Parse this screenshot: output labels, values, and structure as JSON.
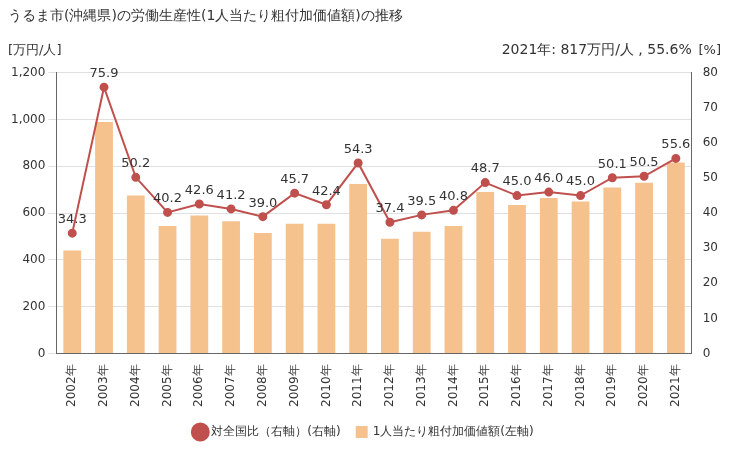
{
  "chart_data": {
    "type": "bar",
    "title": "うるま市(沖縄県)の労働生産性(1人当たり粗付加価値額)の推移",
    "ylabel": "[万円/人]",
    "y2label": "[%]",
    "annotations": [
      "2021年: 817万円/人 , 55.6%"
    ],
    "categories": [
      "2002年",
      "2003年",
      "2004年",
      "2005年",
      "2006年",
      "2007年",
      "2008年",
      "2009年",
      "2010年",
      "2011年",
      "2012年",
      "2013年",
      "2014年",
      "2015年",
      "2016年",
      "2017年",
      "2018年",
      "2019年",
      "2020年",
      "2021年"
    ],
    "series": [
      {
        "name": "1人当たり粗付加価値額(左軸)",
        "type": "bar",
        "color": "#f5c28e",
        "values": [
          440,
          990,
          675,
          545,
          590,
          565,
          515,
          555,
          555,
          725,
          490,
          520,
          545,
          690,
          635,
          665,
          650,
          710,
          730,
          817
        ]
      },
      {
        "name": "対全国比（右軸）(右軸)",
        "type": "line",
        "axis": "y2",
        "color": "#c0504d",
        "marker": "circle",
        "data_labels": true,
        "values": [
          34.3,
          75.9,
          50.2,
          40.2,
          42.6,
          41.2,
          39.0,
          45.7,
          42.4,
          54.3,
          37.4,
          39.5,
          40.8,
          48.7,
          45.0,
          46.0,
          45.0,
          50.1,
          50.5,
          55.6
        ],
        "value_labels": [
          "34.3",
          "75.9",
          "50.2",
          "40.2",
          "42.6",
          "41.2",
          "39.0",
          "45.7",
          "42.4",
          "54.3",
          "37.4",
          "39.5",
          "40.8",
          "48.7",
          "45.0",
          "46.0",
          "45.0",
          "50.1",
          "50.5",
          "55.6"
        ]
      }
    ],
    "ylim": [
      0,
      1200
    ],
    "yticks": [
      0,
      200,
      400,
      600,
      800,
      {
        "value": 1000,
        "label": "1,000"
      },
      {
        "value": 1200,
        "label": "1,200"
      }
    ],
    "y2lim": [
      0,
      80
    ],
    "y2ticks": [
      0,
      10,
      20,
      30,
      40,
      50,
      60,
      70,
      80
    ],
    "grid": true,
    "legend": "bottom"
  }
}
